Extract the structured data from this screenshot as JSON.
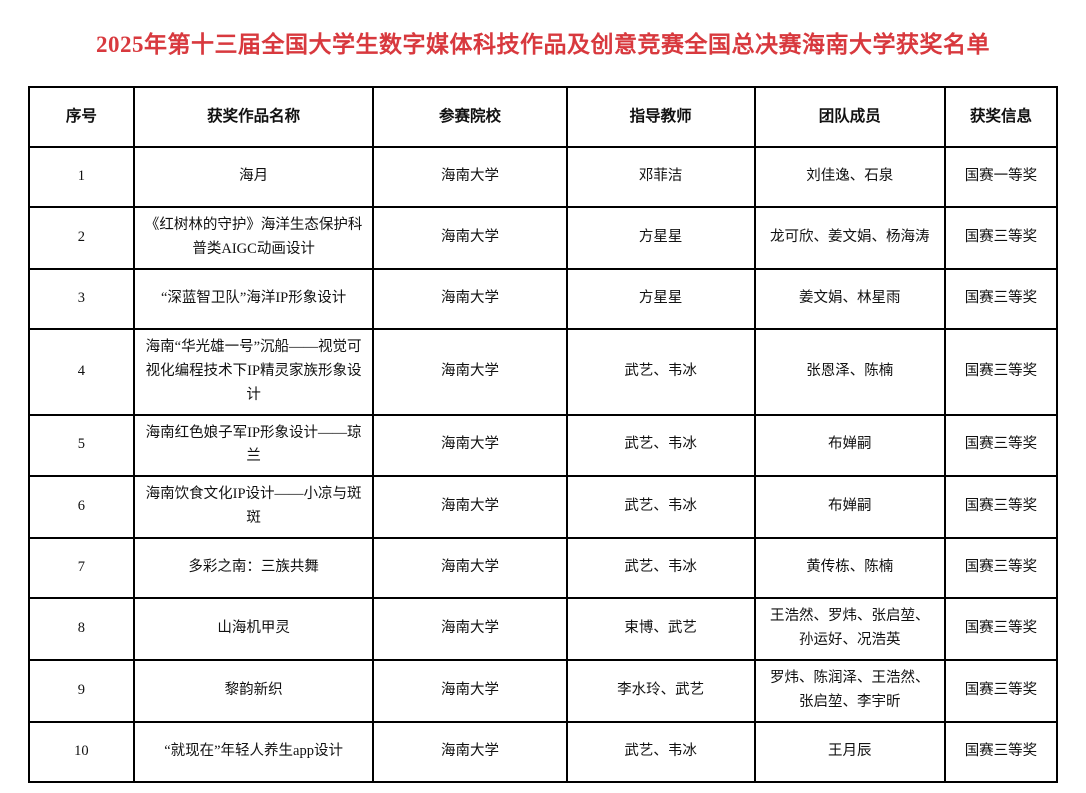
{
  "title": {
    "text": "2025年第十三届全国大学生数字媒体科技作品及创意竞赛全国总决赛海南大学获奖名单",
    "color": "#d8393e"
  },
  "table": {
    "columns": [
      "序号",
      "获奖作品名称",
      "参赛院校",
      "指导教师",
      "团队成员",
      "获奖信息"
    ],
    "rows": [
      {
        "no": "1",
        "work": "海月",
        "school": "海南大学",
        "advisors": "邓菲洁",
        "members": "刘佳逸、石泉",
        "award": "国赛一等奖"
      },
      {
        "no": "2",
        "work": "《红树林的守护》海洋生态保护科普类AIGC动画设计",
        "school": "海南大学",
        "advisors": "方星星",
        "members": "龙可欣、姜文娟、杨海涛",
        "award": "国赛三等奖"
      },
      {
        "no": "3",
        "work": "“深蓝智卫队”海洋IP形象设计",
        "school": "海南大学",
        "advisors": "方星星",
        "members": "姜文娟、林星雨",
        "award": "国赛三等奖"
      },
      {
        "no": "4",
        "work": "海南“华光雄一号”沉船——视觉可视化编程技术下IP精灵家族形象设计",
        "school": "海南大学",
        "advisors": "武艺、韦冰",
        "members": "张恩泽、陈楠",
        "award": "国赛三等奖"
      },
      {
        "no": "5",
        "work": "海南红色娘子军IP形象设计——琼兰",
        "school": "海南大学",
        "advisors": "武艺、韦冰",
        "members": "布婵嗣",
        "award": "国赛三等奖"
      },
      {
        "no": "6",
        "work": "海南饮食文化IP设计——小凉与斑斑",
        "school": "海南大学",
        "advisors": "武艺、韦冰",
        "members": "布婵嗣",
        "award": "国赛三等奖"
      },
      {
        "no": "7",
        "work": "多彩之南：三族共舞",
        "school": "海南大学",
        "advisors": "武艺、韦冰",
        "members": "黄传栋、陈楠",
        "award": "国赛三等奖"
      },
      {
        "no": "8",
        "work": "山海机甲灵",
        "school": "海南大学",
        "advisors": "束博、武艺",
        "members": "王浩然、罗炜、张启堃、孙运好、况浩英",
        "award": "国赛三等奖"
      },
      {
        "no": "9",
        "work": "黎韵新织",
        "school": "海南大学",
        "advisors": "李水玲、武艺",
        "members": "罗炜、陈润泽、王浩然、张启堃、李宇昕",
        "award": "国赛三等奖"
      },
      {
        "no": "10",
        "work": "“就现在”年轻人养生app设计",
        "school": "海南大学",
        "advisors": "武艺、韦冰",
        "members": "王月辰",
        "award": "国赛三等奖"
      }
    ]
  }
}
